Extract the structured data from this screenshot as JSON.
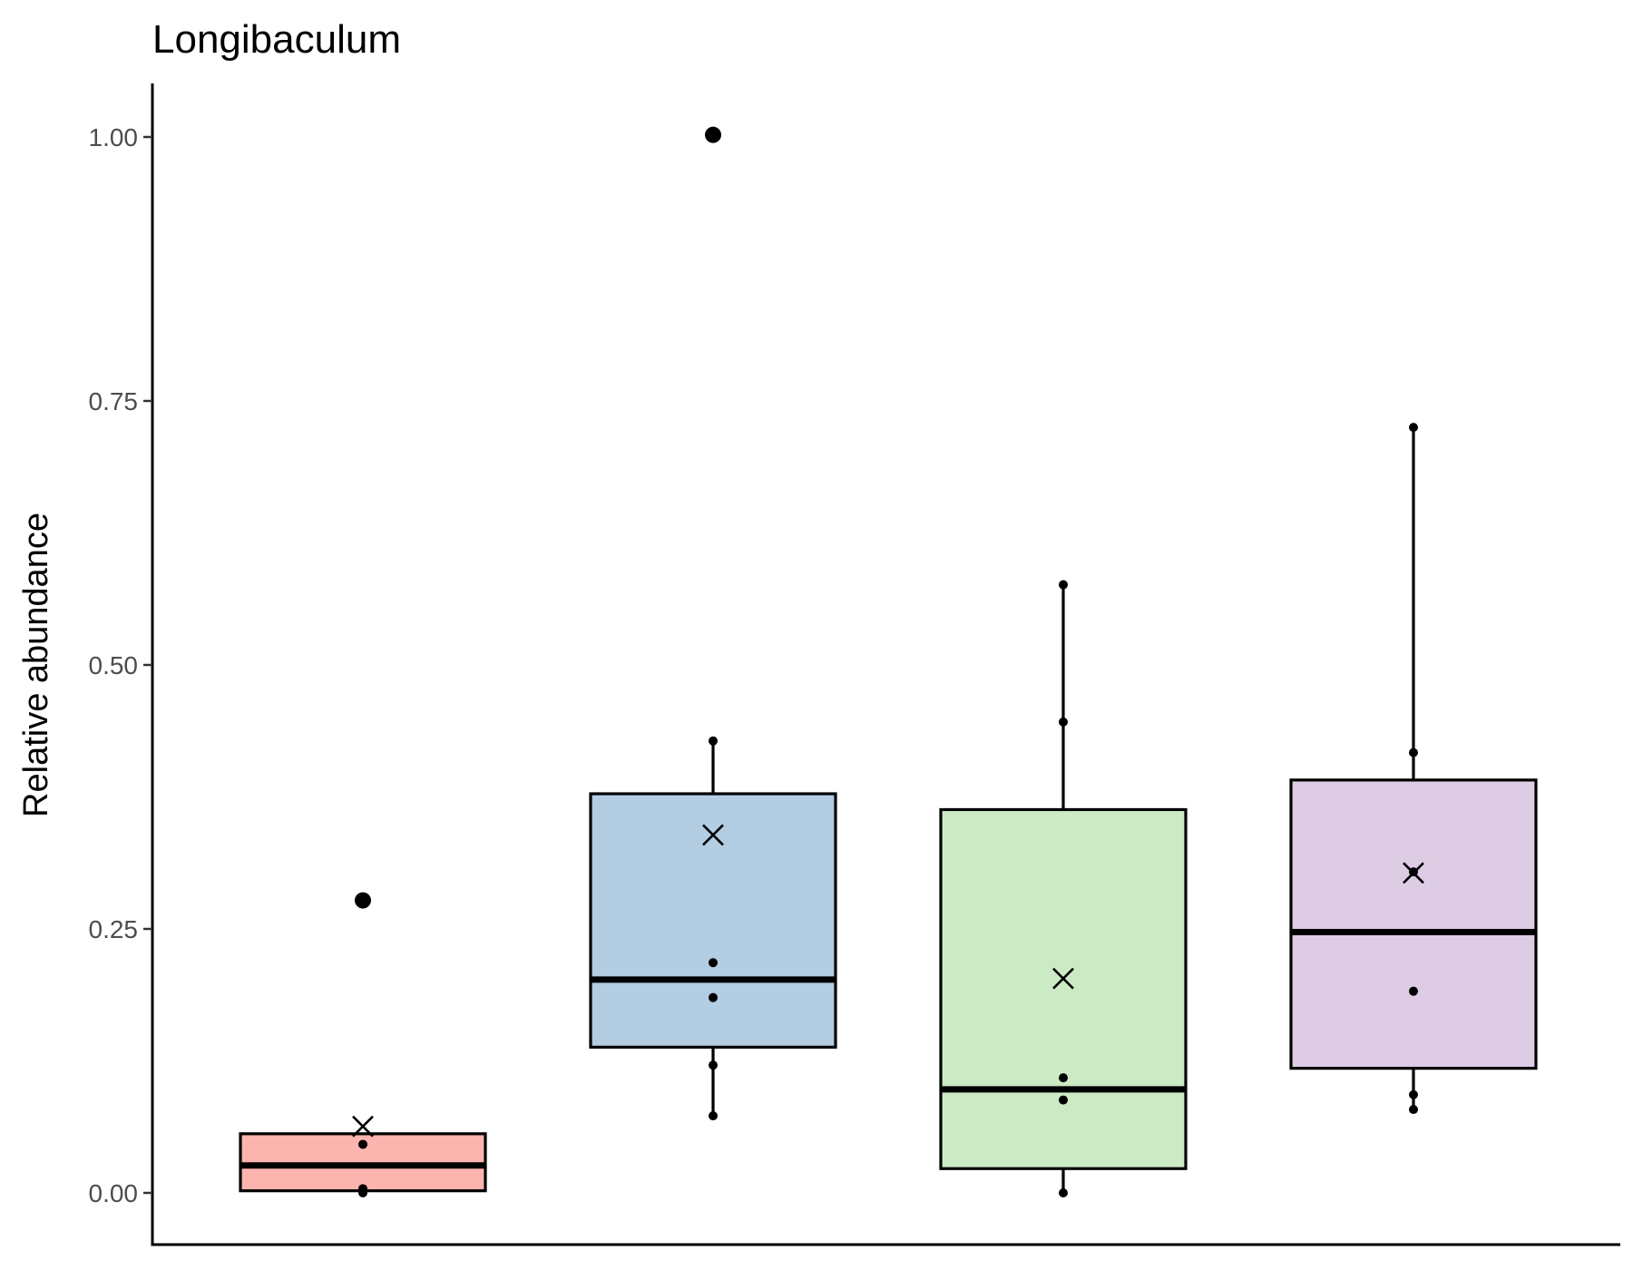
{
  "chart_data": {
    "type": "box",
    "title": "Longibaculum",
    "xlabel": "",
    "ylabel": "Relative abundance",
    "ylim": [
      -0.1,
      1.05
    ],
    "yticks": [
      "0.00",
      "0.25",
      "0.50",
      "0.75",
      "1.00"
    ],
    "ytick_values": [
      0,
      0.25,
      0.5,
      0.75,
      1.0
    ],
    "grid": false,
    "series": [
      {
        "fill": "#FBB4AE",
        "whisker_low": 0.0,
        "q1": 0.002,
        "median": 0.026,
        "q3": 0.056,
        "whisker_high": 0.056,
        "mean": 0.063,
        "outliers": [
          0.277
        ],
        "points": [
          0.0,
          0.004,
          0.046
        ]
      },
      {
        "fill": "#B3CDE3",
        "whisker_low": 0.073,
        "q1": 0.138,
        "median": 0.202,
        "q3": 0.378,
        "whisker_high": 0.428,
        "mean": 0.339,
        "outliers": [
          1.002
        ],
        "points": [
          0.073,
          0.121,
          0.185,
          0.218,
          0.428
        ]
      },
      {
        "fill": "#CCEBC5",
        "whisker_low": 0.0,
        "q1": 0.023,
        "median": 0.098,
        "q3": 0.363,
        "whisker_high": 0.576,
        "mean": 0.203,
        "outliers": [],
        "points": [
          0.0,
          0.088,
          0.109,
          0.446,
          0.576
        ]
      },
      {
        "fill": "#DECBE4",
        "whisker_low": 0.079,
        "q1": 0.118,
        "median": 0.247,
        "q3": 0.391,
        "whisker_high": 0.725,
        "mean": 0.303,
        "outliers": [],
        "points": [
          0.079,
          0.093,
          0.191,
          0.304,
          0.417,
          0.725
        ]
      }
    ]
  }
}
